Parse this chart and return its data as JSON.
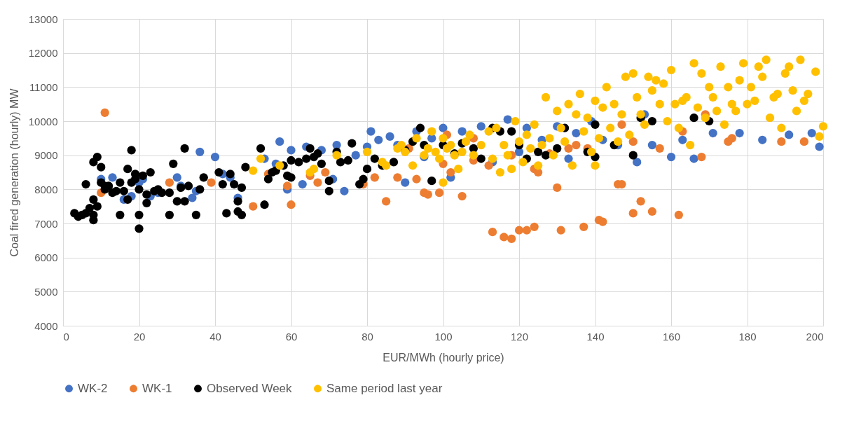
{
  "chart_data": {
    "type": "scatter",
    "xlabel": "EUR/MWh  (hourly price)",
    "ylabel": "Coal fired generation (hourly) MW",
    "xlim": [
      0,
      200
    ],
    "ylim": [
      4000,
      13000
    ],
    "xticks": [
      0,
      20,
      40,
      60,
      80,
      100,
      120,
      140,
      160,
      180,
      200
    ],
    "yticks": [
      4000,
      5000,
      6000,
      7000,
      8000,
      9000,
      10000,
      11000,
      12000,
      13000
    ],
    "grid": true,
    "legend": "bottom",
    "marker": "circle",
    "series": [
      {
        "name": "WK-2",
        "color": "#4472c4",
        "x": [
          10,
          13,
          16,
          18,
          20,
          21,
          23,
          25,
          30,
          31,
          34,
          35,
          36,
          40,
          42,
          44,
          46,
          53,
          56,
          57,
          59,
          60,
          63,
          64,
          68,
          71,
          72,
          74,
          77,
          80,
          81,
          83,
          86,
          88,
          90,
          93,
          95,
          97,
          100,
          102,
          105,
          110,
          113,
          117,
          120,
          122,
          126,
          130,
          133,
          135,
          139,
          142,
          146,
          151,
          153,
          155,
          160,
          163,
          166,
          171,
          178,
          184,
          191,
          197,
          199
        ],
        "values": [
          8300,
          8350,
          7700,
          7800,
          8200,
          8300,
          7800,
          7900,
          8350,
          8100,
          7750,
          7950,
          9100,
          8950,
          8450,
          8350,
          7750,
          8900,
          8750,
          9400,
          8000,
          9150,
          8150,
          9250,
          9150,
          8300,
          9300,
          7950,
          9000,
          9250,
          9700,
          9450,
          9550,
          9300,
          8200,
          9700,
          8950,
          9500,
          9800,
          8350,
          9700,
          9850,
          8800,
          10050,
          9100,
          9800,
          9450,
          9850,
          8900,
          9650,
          10000,
          9450,
          9300,
          8800,
          10200,
          9300,
          8950,
          9450,
          8900,
          9650,
          9650,
          9450,
          9600,
          9650,
          9250
        ]
      },
      {
        "name": "WK-1",
        "color": "#ed7d31",
        "x": [
          10,
          11,
          28,
          39,
          50,
          54,
          59,
          60,
          65,
          67,
          69,
          79,
          82,
          85,
          88,
          91,
          93,
          95,
          96,
          99,
          100,
          101,
          102,
          105,
          108,
          108,
          112,
          113,
          116,
          118,
          118,
          120,
          122,
          124,
          124,
          125,
          128,
          130,
          131,
          133,
          135,
          137,
          138,
          141,
          142,
          146,
          147,
          147,
          150,
          150,
          152,
          155,
          157,
          162,
          163,
          168,
          169,
          175,
          176,
          189,
          195
        ],
        "values": [
          7900,
          10250,
          8200,
          8200,
          7500,
          8450,
          8100,
          7550,
          8400,
          8200,
          8500,
          8150,
          8350,
          7650,
          8350,
          9200,
          8300,
          7900,
          7850,
          7900,
          8750,
          9600,
          8500,
          7800,
          8850,
          9500,
          8700,
          6750,
          6600,
          6550,
          9000,
          6800,
          6800,
          6900,
          8600,
          8500,
          9050,
          8050,
          6800,
          9200,
          9300,
          6900,
          9200,
          7100,
          7050,
          8150,
          8150,
          9900,
          7300,
          9400,
          7650,
          7350,
          9200,
          7250,
          9700,
          8950,
          10200,
          9400,
          9500,
          9400,
          9400
        ]
      },
      {
        "name": "Observed Week",
        "color": "#000000",
        "x": [
          3,
          4,
          5,
          6,
          6,
          7,
          8,
          8,
          8,
          8,
          9,
          9,
          10,
          10,
          11,
          11,
          12,
          13,
          14,
          15,
          15,
          16,
          17,
          17,
          18,
          18,
          19,
          19,
          20,
          20,
          20,
          21,
          22,
          22,
          23,
          24,
          25,
          26,
          28,
          28,
          29,
          30,
          31,
          32,
          32,
          33,
          35,
          36,
          37,
          41,
          42,
          43,
          44,
          45,
          46,
          46,
          47,
          47,
          48,
          52,
          53,
          54,
          55,
          56,
          58,
          59,
          60,
          60,
          62,
          64,
          65,
          66,
          67,
          68,
          70,
          70,
          72,
          73,
          75,
          76,
          78,
          79,
          80,
          82,
          84,
          87,
          90,
          92,
          94,
          95,
          97,
          100,
          103,
          105,
          108,
          110,
          113,
          115,
          118,
          120,
          122,
          125,
          127,
          130,
          132,
          138,
          140,
          140,
          145,
          150,
          152,
          155,
          166,
          170
        ],
        "values": [
          7300,
          7200,
          7250,
          7300,
          8150,
          7450,
          7700,
          7100,
          7250,
          8800,
          8950,
          7500,
          8200,
          8650,
          8000,
          8100,
          8100,
          7900,
          7950,
          8200,
          7250,
          7950,
          7700,
          8600,
          8200,
          9150,
          8300,
          8450,
          7250,
          6850,
          8000,
          8400,
          7850,
          7600,
          8500,
          7950,
          8000,
          7900,
          7250,
          7900,
          8750,
          7650,
          8050,
          7650,
          9200,
          8100,
          7250,
          8000,
          8350,
          8500,
          8150,
          7300,
          8450,
          8150,
          7650,
          7350,
          8050,
          7250,
          8650,
          9200,
          7550,
          8300,
          8500,
          8550,
          8700,
          8400,
          8350,
          8850,
          8800,
          8900,
          9200,
          8950,
          9050,
          8750,
          8250,
          7950,
          9100,
          8800,
          8850,
          9350,
          8150,
          8300,
          8600,
          8900,
          8700,
          8800,
          9150,
          9400,
          9800,
          9300,
          8250,
          9300,
          9050,
          9350,
          9200,
          8900,
          9800,
          9700,
          9700,
          9300,
          8900,
          9100,
          9000,
          9200,
          9800,
          9100,
          8950,
          9900,
          9300,
          9000,
          10100,
          10000,
          10100,
          10000
        ]
      },
      {
        "name": "Same period last year",
        "color": "#ffc000",
        "x": [
          50,
          52,
          57,
          65,
          66,
          72,
          80,
          84,
          85,
          88,
          89,
          90,
          92,
          93,
          95,
          96,
          97,
          98,
          99,
          100,
          100,
          101,
          102,
          103,
          104,
          105,
          106,
          107,
          108,
          110,
          112,
          113,
          114,
          115,
          116,
          117,
          118,
          119,
          120,
          121,
          122,
          123,
          124,
          125,
          126,
          127,
          128,
          129,
          130,
          131,
          132,
          133,
          134,
          135,
          136,
          137,
          138,
          139,
          140,
          140,
          141,
          142,
          143,
          144,
          145,
          146,
          147,
          148,
          149,
          150,
          151,
          152,
          153,
          154,
          155,
          156,
          157,
          158,
          159,
          160,
          161,
          162,
          163,
          164,
          165,
          166,
          167,
          168,
          169,
          170,
          171,
          172,
          173,
          174,
          175,
          176,
          177,
          178,
          179,
          180,
          181,
          182,
          183,
          184,
          185,
          186,
          187,
          188,
          189,
          190,
          191,
          192,
          193,
          194,
          195,
          196,
          198,
          199,
          200
        ],
        "values": [
          8550,
          8900,
          8700,
          8500,
          8600,
          9000,
          9100,
          8800,
          8700,
          9200,
          9300,
          9100,
          8700,
          9500,
          9000,
          9200,
          9700,
          9100,
          8900,
          8200,
          9500,
          9200,
          9300,
          9000,
          8600,
          9100,
          9400,
          9600,
          9000,
          9300,
          9700,
          8900,
          9800,
          8500,
          9300,
          9000,
          8600,
          10000,
          9400,
          8800,
          9600,
          9200,
          9900,
          8700,
          9300,
          10700,
          9500,
          9000,
          10300,
          9800,
          9400,
          10500,
          8700,
          10200,
          10800,
          9700,
          10100,
          9100,
          8700,
          10600,
          9500,
          10400,
          11000,
          9800,
          10500,
          9400,
          10200,
          11300,
          9600,
          11400,
          10700,
          10200,
          9900,
          11300,
          10900,
          11200,
          10500,
          11100,
          10000,
          11500,
          10500,
          9800,
          10600,
          10700,
          9300,
          11700,
          10400,
          11400,
          10100,
          11000,
          10700,
          10300,
          11600,
          9900,
          11000,
          10500,
          10300,
          11200,
          11700,
          10500,
          11000,
          10600,
          11600,
          11300,
          11800,
          10100,
          10700,
          10800,
          9800,
          11400,
          11600,
          10900,
          10300,
          11800,
          10600,
          10800,
          11450,
          9550,
          9850
        ]
      }
    ]
  }
}
